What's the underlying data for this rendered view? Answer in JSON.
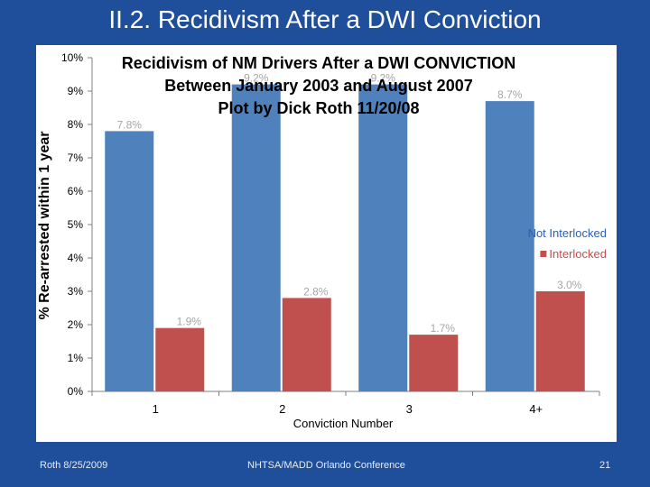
{
  "slide": {
    "title": "II.2. Recidivism After a DWI Conviction",
    "footer_left": "Roth 8/25/2009",
    "footer_center": "NHTSA/MADD Orlando Conference",
    "slide_number": "21"
  },
  "chart_data": {
    "type": "bar",
    "title_lines": [
      "Recidivism of NM Drivers After a DWI CONVICTION",
      "Between January 2003 and August 2007",
      "Plot by Dick Roth  11/20/08"
    ],
    "categories": [
      "1",
      "2",
      "3",
      "4+"
    ],
    "series": [
      {
        "name": "Not Interlocked",
        "values": [
          7.8,
          9.2,
          9.2,
          8.7
        ],
        "labels": [
          "7.8%",
          "9.2%",
          "9.2%",
          "8.7%"
        ]
      },
      {
        "name": "Interlocked",
        "values": [
          1.9,
          2.8,
          1.7,
          3.0
        ],
        "labels": [
          "1.9%",
          "2.8%",
          "1.7%",
          "3.0%"
        ]
      }
    ],
    "xlabel": "Conviction Number",
    "ylabel": "% Re-arrested within 1 year",
    "ylim": [
      0,
      10
    ],
    "ytick_labels": [
      "0%",
      "1%",
      "2%",
      "3%",
      "4%",
      "5%",
      "6%",
      "7%",
      "8%",
      "9%",
      "10%"
    ],
    "legend_position": "right",
    "grid": false,
    "colors": {
      "Not Interlocked": "#4f81bd",
      "Interlocked": "#c0504d",
      "data_label": "#a6a6a6",
      "legend_text_not_interlocked": "#2e5fa8"
    }
  }
}
